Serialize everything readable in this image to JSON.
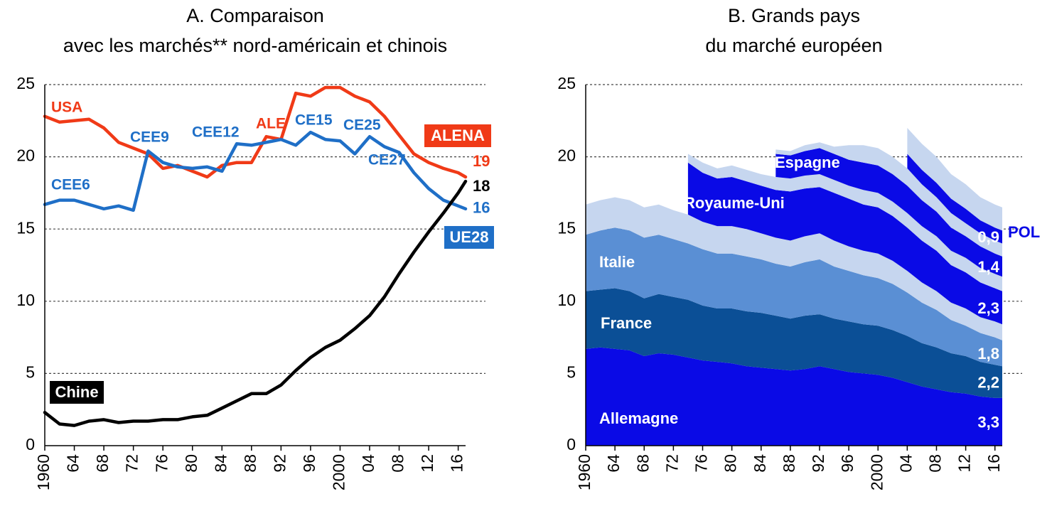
{
  "chart_data": [
    {
      "type": "line",
      "title": [
        "A. Comparaison",
        "avec les marchés** nord-américain et chinois"
      ],
      "x": [
        1960,
        1962,
        1964,
        1966,
        1968,
        1970,
        1972,
        1974,
        1976,
        1978,
        1980,
        1982,
        1984,
        1986,
        1988,
        1990,
        1992,
        1994,
        1996,
        1998,
        2000,
        2002,
        2004,
        2006,
        2008,
        2010,
        2012,
        2014,
        2016,
        2017
      ],
      "xlim": [
        1960,
        2017
      ],
      "xticks": [
        1960,
        {
          "value": 1964,
          "label": "64"
        },
        {
          "value": 1968,
          "label": "68"
        },
        {
          "value": 1972,
          "label": "72"
        },
        {
          "value": 1976,
          "label": "76"
        },
        {
          "value": 1980,
          "label": "80"
        },
        {
          "value": 1984,
          "label": "84"
        },
        {
          "value": 1988,
          "label": "88"
        },
        {
          "value": 1992,
          "label": "92"
        },
        {
          "value": 1996,
          "label": "96"
        },
        2000,
        {
          "value": 2004,
          "label": "04"
        },
        {
          "value": 2008,
          "label": "08"
        },
        {
          "value": 2012,
          "label": "12"
        },
        {
          "value": 2016,
          "label": "16"
        }
      ],
      "ylim": [
        0,
        25
      ],
      "yticks": [
        0,
        5,
        10,
        15,
        20,
        25
      ],
      "grid": true,
      "series": [
        {
          "name": "ALENA",
          "color": "#f03a17",
          "values": [
            22.8,
            22.4,
            22.5,
            22.6,
            22.0,
            21.0,
            20.6,
            20.2,
            19.2,
            19.4,
            19.0,
            18.6,
            19.4,
            19.6,
            19.6,
            21.4,
            21.2,
            24.4,
            24.2,
            24.8,
            24.8,
            24.2,
            23.8,
            22.8,
            21.5,
            20.2,
            19.6,
            19.2,
            18.9,
            18.6
          ],
          "value_labels": [
            null,
            null,
            null,
            null,
            null,
            null,
            null,
            null,
            null,
            null,
            null,
            null,
            null,
            null,
            null,
            null,
            null,
            null,
            null,
            null,
            null,
            null,
            null,
            null,
            null,
            null,
            null,
            null,
            null,
            "19"
          ]
        },
        {
          "name": "UE28",
          "color": "#1f6fc7",
          "values": [
            16.7,
            17.0,
            17.0,
            16.7,
            16.4,
            16.6,
            16.3,
            20.4,
            19.6,
            19.3,
            19.2,
            19.3,
            19.0,
            20.9,
            20.8,
            21.0,
            21.2,
            20.8,
            21.7,
            21.2,
            21.1,
            20.2,
            21.4,
            20.7,
            20.3,
            18.9,
            17.8,
            17.0,
            16.6,
            16.4
          ],
          "value_labels": [
            null,
            null,
            null,
            null,
            null,
            null,
            null,
            null,
            null,
            null,
            null,
            null,
            null,
            null,
            null,
            null,
            null,
            null,
            null,
            null,
            null,
            null,
            null,
            null,
            null,
            null,
            null,
            null,
            null,
            "16"
          ]
        },
        {
          "name": "Chine",
          "color": "#000000",
          "values": [
            2.3,
            1.5,
            1.4,
            1.7,
            1.8,
            1.6,
            1.7,
            1.7,
            1.8,
            1.8,
            2.0,
            2.1,
            2.6,
            3.1,
            3.6,
            3.6,
            4.2,
            5.2,
            6.1,
            6.8,
            7.3,
            8.1,
            9.0,
            10.3,
            11.9,
            13.4,
            14.8,
            16.1,
            17.5,
            18.3
          ],
          "value_labels": [
            null,
            null,
            null,
            null,
            null,
            null,
            null,
            null,
            null,
            null,
            null,
            null,
            null,
            null,
            null,
            null,
            null,
            null,
            null,
            null,
            null,
            null,
            null,
            null,
            null,
            null,
            null,
            null,
            null,
            "18"
          ]
        }
      ],
      "annotations": [
        {
          "text": "USA",
          "color": "#f03a17"
        },
        {
          "text": "ALE",
          "color": "#f03a17"
        },
        {
          "text": "CEE6",
          "color": "#1f6fc7"
        },
        {
          "text": "CEE9",
          "color": "#1f6fc7"
        },
        {
          "text": "CEE12",
          "color": "#1f6fc7"
        },
        {
          "text": "CE15",
          "color": "#1f6fc7"
        },
        {
          "text": "CE25",
          "color": "#1f6fc7"
        },
        {
          "text": "CE27",
          "color": "#1f6fc7"
        }
      ]
    },
    {
      "type": "area",
      "title": [
        "B. Grands pays",
        "du marché européen"
      ],
      "x": [
        1960,
        1962,
        1964,
        1966,
        1968,
        1970,
        1972,
        1974,
        1976,
        1978,
        1980,
        1982,
        1984,
        1986,
        1988,
        1990,
        1992,
        1994,
        1996,
        1998,
        2000,
        2002,
        2004,
        2006,
        2008,
        2010,
        2012,
        2014,
        2016,
        2017
      ],
      "xlim": [
        1960,
        2017
      ],
      "xticks": [
        1960,
        {
          "value": 1964,
          "label": "64"
        },
        {
          "value": 1968,
          "label": "68"
        },
        {
          "value": 1972,
          "label": "72"
        },
        {
          "value": 1976,
          "label": "76"
        },
        {
          "value": 1980,
          "label": "80"
        },
        {
          "value": 1984,
          "label": "84"
        },
        {
          "value": 1988,
          "label": "88"
        },
        {
          "value": 1992,
          "label": "92"
        },
        {
          "value": 1996,
          "label": "96"
        },
        2000,
        {
          "value": 2004,
          "label": "04"
        },
        {
          "value": 2008,
          "label": "08"
        },
        {
          "value": 2012,
          "label": "12"
        },
        {
          "value": 2016,
          "label": "16"
        }
      ],
      "ylim": [
        0,
        25
      ],
      "yticks": [
        0,
        5,
        10,
        15,
        20,
        25
      ],
      "grid": true,
      "stacked": true,
      "series": [
        {
          "name": "Allemagne",
          "color": "#0a0ae6",
          "values": [
            6.7,
            6.8,
            6.7,
            6.6,
            6.2,
            6.4,
            6.3,
            6.1,
            5.9,
            5.8,
            5.7,
            5.5,
            5.4,
            5.3,
            5.2,
            5.3,
            5.5,
            5.3,
            5.1,
            5.0,
            4.9,
            4.7,
            4.4,
            4.1,
            3.9,
            3.7,
            3.6,
            3.4,
            3.3,
            3.3
          ],
          "value_labels": [
            null,
            null,
            null,
            null,
            null,
            null,
            null,
            null,
            null,
            null,
            null,
            null,
            null,
            null,
            null,
            null,
            null,
            null,
            null,
            null,
            null,
            null,
            null,
            null,
            null,
            null,
            null,
            null,
            null,
            "3,3"
          ]
        },
        {
          "name": "France",
          "color": "#0b4f96",
          "values": [
            4.0,
            4.0,
            4.2,
            4.1,
            4.0,
            4.1,
            4.0,
            4.0,
            3.8,
            3.7,
            3.8,
            3.8,
            3.8,
            3.7,
            3.6,
            3.7,
            3.6,
            3.5,
            3.5,
            3.4,
            3.4,
            3.3,
            3.2,
            3.0,
            2.9,
            2.7,
            2.6,
            2.4,
            2.3,
            2.2
          ],
          "value_labels": [
            null,
            null,
            null,
            null,
            null,
            null,
            null,
            null,
            null,
            null,
            null,
            null,
            null,
            null,
            null,
            null,
            null,
            null,
            null,
            null,
            null,
            null,
            null,
            null,
            null,
            null,
            null,
            null,
            null,
            "2,2"
          ]
        },
        {
          "name": "Italie",
          "color": "#5a8fd4",
          "values": [
            3.9,
            4.1,
            4.2,
            4.2,
            4.2,
            4.1,
            4.0,
            3.9,
            3.9,
            3.8,
            3.8,
            3.8,
            3.7,
            3.6,
            3.6,
            3.7,
            3.8,
            3.6,
            3.5,
            3.4,
            3.3,
            3.2,
            3.0,
            2.8,
            2.6,
            2.3,
            2.1,
            2.0,
            1.9,
            1.8
          ],
          "value_labels": [
            null,
            null,
            null,
            null,
            null,
            null,
            null,
            null,
            null,
            null,
            null,
            null,
            null,
            null,
            null,
            null,
            null,
            null,
            null,
            null,
            null,
            null,
            null,
            null,
            null,
            null,
            null,
            null,
            null,
            "1,8"
          ]
        },
        {
          "color": "#c6d6ef",
          "values": [
            2.1,
            2.1,
            2.1,
            2.1,
            2.1,
            2.1,
            2.0,
            2.0,
            1.9,
            1.9,
            1.9,
            1.9,
            1.8,
            1.8,
            1.8,
            1.8,
            1.8,
            1.8,
            1.7,
            1.7,
            1.7,
            1.6,
            1.5,
            1.4,
            1.3,
            1.2,
            1.2,
            1.1,
            1.1,
            1.1
          ]
        },
        {
          "name": "Royaume-Uni",
          "color": "#0a0ae6",
          "values": [
            null,
            null,
            null,
            null,
            null,
            null,
            null,
            3.6,
            3.4,
            3.3,
            3.4,
            3.3,
            3.3,
            3.3,
            3.4,
            3.3,
            3.2,
            3.3,
            3.3,
            3.2,
            3.2,
            3.1,
            3.0,
            2.9,
            2.8,
            2.6,
            2.5,
            2.4,
            2.3,
            2.3
          ],
          "value_labels": [
            null,
            null,
            null,
            null,
            null,
            null,
            null,
            null,
            null,
            null,
            null,
            null,
            null,
            null,
            null,
            null,
            null,
            null,
            null,
            null,
            null,
            null,
            null,
            null,
            null,
            null,
            null,
            null,
            null,
            "2,3"
          ]
        },
        {
          "color": "#c6d6ef",
          "values": [
            null,
            null,
            null,
            null,
            null,
            null,
            null,
            0.6,
            0.7,
            0.7,
            0.8,
            0.8,
            0.8,
            0.9,
            0.9,
            0.9,
            0.9,
            0.9,
            0.9,
            1.0,
            1.0,
            1.0,
            1.0,
            1.0,
            1.0,
            1.0,
            1.0,
            1.0,
            1.0,
            1.0
          ]
        },
        {
          "name": "Espagne",
          "color": "#0a0ae6",
          "values": [
            null,
            null,
            null,
            null,
            null,
            null,
            null,
            null,
            null,
            null,
            null,
            null,
            null,
            1.6,
            1.6,
            1.7,
            1.8,
            1.8,
            1.8,
            1.9,
            1.9,
            1.9,
            1.9,
            1.8,
            1.7,
            1.6,
            1.5,
            1.5,
            1.4,
            1.4
          ],
          "value_labels": [
            null,
            null,
            null,
            null,
            null,
            null,
            null,
            null,
            null,
            null,
            null,
            null,
            null,
            null,
            null,
            null,
            null,
            null,
            null,
            null,
            null,
            null,
            null,
            null,
            null,
            null,
            null,
            null,
            null,
            "1,4"
          ]
        },
        {
          "color": "#c6d6ef",
          "values": [
            null,
            null,
            null,
            null,
            null,
            null,
            null,
            null,
            null,
            null,
            null,
            null,
            null,
            0.3,
            0.3,
            0.4,
            0.4,
            0.5,
            1.0,
            1.2,
            1.2,
            1.2,
            1.2,
            1.1,
            1.0,
            1.0,
            0.9,
            0.9,
            0.9,
            0.9
          ]
        },
        {
          "name": "POL",
          "color": "#0a0ae6",
          "values": [
            null,
            null,
            null,
            null,
            null,
            null,
            null,
            null,
            null,
            null,
            null,
            null,
            null,
            null,
            null,
            null,
            null,
            null,
            null,
            null,
            null,
            null,
            1.0,
            1.0,
            1.0,
            1.0,
            1.0,
            0.9,
            0.9,
            0.9
          ],
          "value_labels": [
            null,
            null,
            null,
            null,
            null,
            null,
            null,
            null,
            null,
            null,
            null,
            null,
            null,
            null,
            null,
            null,
            null,
            null,
            null,
            null,
            null,
            null,
            null,
            null,
            null,
            null,
            null,
            null,
            null,
            "0,9"
          ]
        },
        {
          "color": "#c6d6ef",
          "values": [
            null,
            null,
            null,
            null,
            null,
            null,
            null,
            null,
            null,
            null,
            null,
            null,
            null,
            null,
            null,
            null,
            null,
            null,
            null,
            null,
            null,
            null,
            1.8,
            1.8,
            1.8,
            1.7,
            1.7,
            1.6,
            1.6,
            1.6
          ]
        }
      ]
    }
  ]
}
